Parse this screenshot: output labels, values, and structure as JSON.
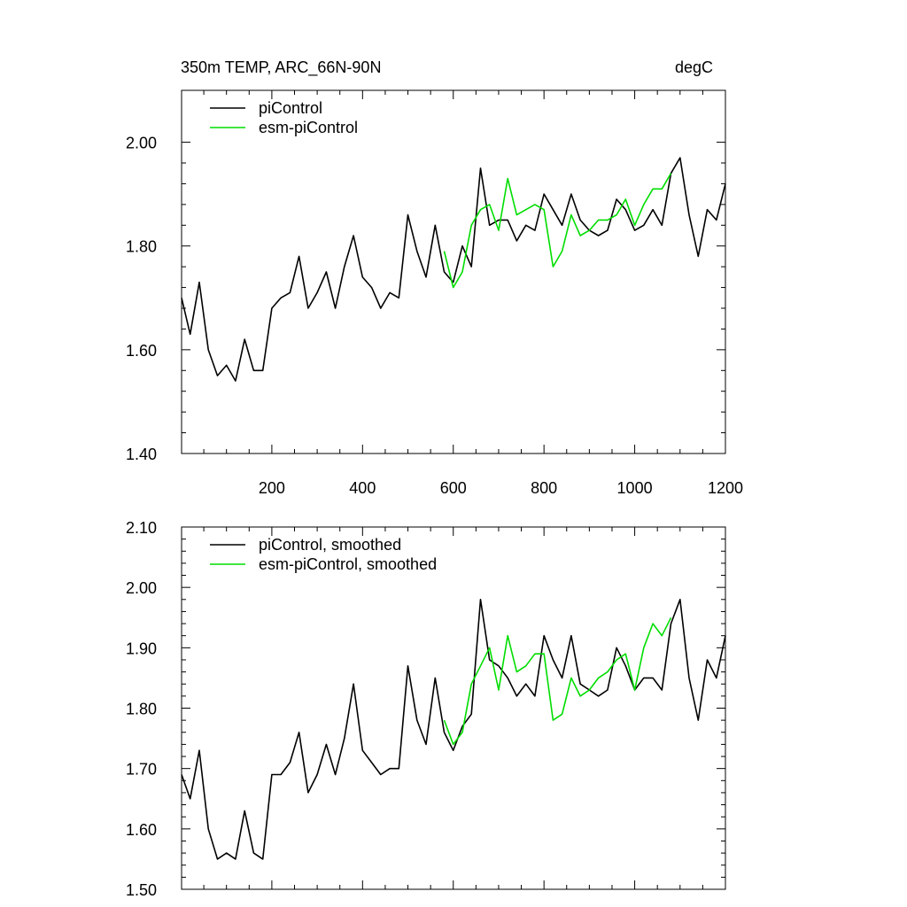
{
  "figure": {
    "title_left": "350m TEMP, ARC_66N-90N",
    "title_right": "degC"
  },
  "colors": {
    "pi": "#000000",
    "esm": "#00dd00",
    "axis": "#000000"
  },
  "chart_data": [
    {
      "type": "line",
      "title": "350m TEMP, ARC_66N-90N",
      "units": "degC",
      "xlim": [
        1,
        1200
      ],
      "ylim": [
        1.4,
        2.1
      ],
      "x_ticks": [
        200,
        400,
        600,
        800,
        1000,
        1200
      ],
      "x_tick_labels": [
        "200",
        "400",
        "600",
        "800",
        "1000",
        "1200"
      ],
      "y_ticks": [
        1.4,
        1.6,
        1.8,
        2.0
      ],
      "y_tick_labels": [
        "1.40",
        "1.60",
        "1.80",
        "2.00"
      ],
      "legend": [
        "piControl",
        "esm-piControl"
      ],
      "legend_position": "top-left",
      "series": [
        {
          "name": "piControl",
          "color": "#000000",
          "x": [
            1,
            20,
            40,
            60,
            80,
            100,
            120,
            140,
            160,
            180,
            200,
            220,
            240,
            260,
            280,
            300,
            320,
            340,
            360,
            380,
            400,
            420,
            440,
            460,
            480,
            500,
            520,
            540,
            560,
            580,
            600,
            620,
            640,
            660,
            680,
            700,
            720,
            740,
            760,
            780,
            800,
            820,
            840,
            860,
            880,
            900,
            920,
            940,
            960,
            980,
            1000,
            1020,
            1040,
            1060,
            1080,
            1100,
            1120,
            1140,
            1160,
            1180,
            1200
          ],
          "values": [
            1.7,
            1.63,
            1.73,
            1.6,
            1.55,
            1.57,
            1.54,
            1.62,
            1.56,
            1.56,
            1.68,
            1.7,
            1.71,
            1.78,
            1.68,
            1.71,
            1.75,
            1.68,
            1.76,
            1.82,
            1.74,
            1.72,
            1.68,
            1.71,
            1.7,
            1.86,
            1.79,
            1.74,
            1.84,
            1.75,
            1.73,
            1.8,
            1.76,
            1.95,
            1.84,
            1.85,
            1.85,
            1.81,
            1.84,
            1.83,
            1.9,
            1.87,
            1.84,
            1.9,
            1.85,
            1.83,
            1.82,
            1.83,
            1.89,
            1.87,
            1.83,
            1.84,
            1.87,
            1.84,
            1.94,
            1.97,
            1.86,
            1.78,
            1.87,
            1.85,
            1.92
          ]
        },
        {
          "name": "esm-piControl",
          "color": "#00dd00",
          "x": [
            580,
            600,
            620,
            640,
            660,
            680,
            700,
            720,
            740,
            760,
            780,
            800,
            820,
            840,
            860,
            880,
            900,
            920,
            940,
            960,
            980,
            1000,
            1020,
            1040,
            1060,
            1080
          ],
          "values": [
            1.79,
            1.72,
            1.75,
            1.84,
            1.87,
            1.88,
            1.83,
            1.93,
            1.86,
            1.87,
            1.88,
            1.87,
            1.76,
            1.79,
            1.86,
            1.82,
            1.83,
            1.85,
            1.85,
            1.86,
            1.89,
            1.84,
            1.88,
            1.91,
            1.91,
            1.94
          ]
        }
      ]
    },
    {
      "type": "line",
      "xlim": [
        1,
        1200
      ],
      "ylim": [
        1.5,
        2.1
      ],
      "x_ticks": [
        200,
        400,
        600,
        800,
        1000,
        1200
      ],
      "y_ticks": [
        1.5,
        1.6,
        1.7,
        1.8,
        1.9,
        2.0,
        2.1
      ],
      "y_tick_labels": [
        "1.50",
        "1.60",
        "1.70",
        "1.80",
        "1.90",
        "2.00",
        "2.10"
      ],
      "legend": [
        "piControl, smoothed",
        "esm-piControl, smoothed"
      ],
      "legend_position": "top-left",
      "series": [
        {
          "name": "piControl, smoothed",
          "color": "#000000",
          "x": [
            1,
            20,
            40,
            60,
            80,
            100,
            120,
            140,
            160,
            180,
            200,
            220,
            240,
            260,
            280,
            300,
            320,
            340,
            360,
            380,
            400,
            420,
            440,
            460,
            480,
            500,
            520,
            540,
            560,
            580,
            600,
            620,
            640,
            660,
            680,
            700,
            720,
            740,
            760,
            780,
            800,
            820,
            840,
            860,
            880,
            900,
            920,
            940,
            960,
            980,
            1000,
            1020,
            1040,
            1060,
            1080,
            1100,
            1120,
            1140,
            1160,
            1180,
            1200
          ],
          "values": [
            1.69,
            1.65,
            1.73,
            1.6,
            1.55,
            1.56,
            1.55,
            1.63,
            1.56,
            1.55,
            1.69,
            1.69,
            1.71,
            1.76,
            1.66,
            1.69,
            1.74,
            1.69,
            1.75,
            1.84,
            1.73,
            1.71,
            1.69,
            1.7,
            1.7,
            1.87,
            1.78,
            1.74,
            1.85,
            1.76,
            1.73,
            1.77,
            1.79,
            1.98,
            1.88,
            1.87,
            1.85,
            1.82,
            1.84,
            1.82,
            1.92,
            1.88,
            1.85,
            1.92,
            1.84,
            1.83,
            1.82,
            1.83,
            1.9,
            1.87,
            1.83,
            1.85,
            1.85,
            1.83,
            1.94,
            1.98,
            1.85,
            1.78,
            1.88,
            1.85,
            1.92
          ]
        },
        {
          "name": "esm-piControl, smoothed",
          "color": "#00dd00",
          "x": [
            580,
            600,
            620,
            640,
            660,
            680,
            700,
            720,
            740,
            760,
            780,
            800,
            820,
            840,
            860,
            880,
            900,
            920,
            940,
            960,
            980,
            1000,
            1020,
            1040,
            1060,
            1080
          ],
          "values": [
            1.78,
            1.74,
            1.76,
            1.84,
            1.87,
            1.9,
            1.83,
            1.92,
            1.86,
            1.87,
            1.89,
            1.89,
            1.78,
            1.79,
            1.85,
            1.82,
            1.83,
            1.85,
            1.86,
            1.88,
            1.89,
            1.83,
            1.9,
            1.94,
            1.92,
            1.95
          ]
        }
      ]
    }
  ]
}
